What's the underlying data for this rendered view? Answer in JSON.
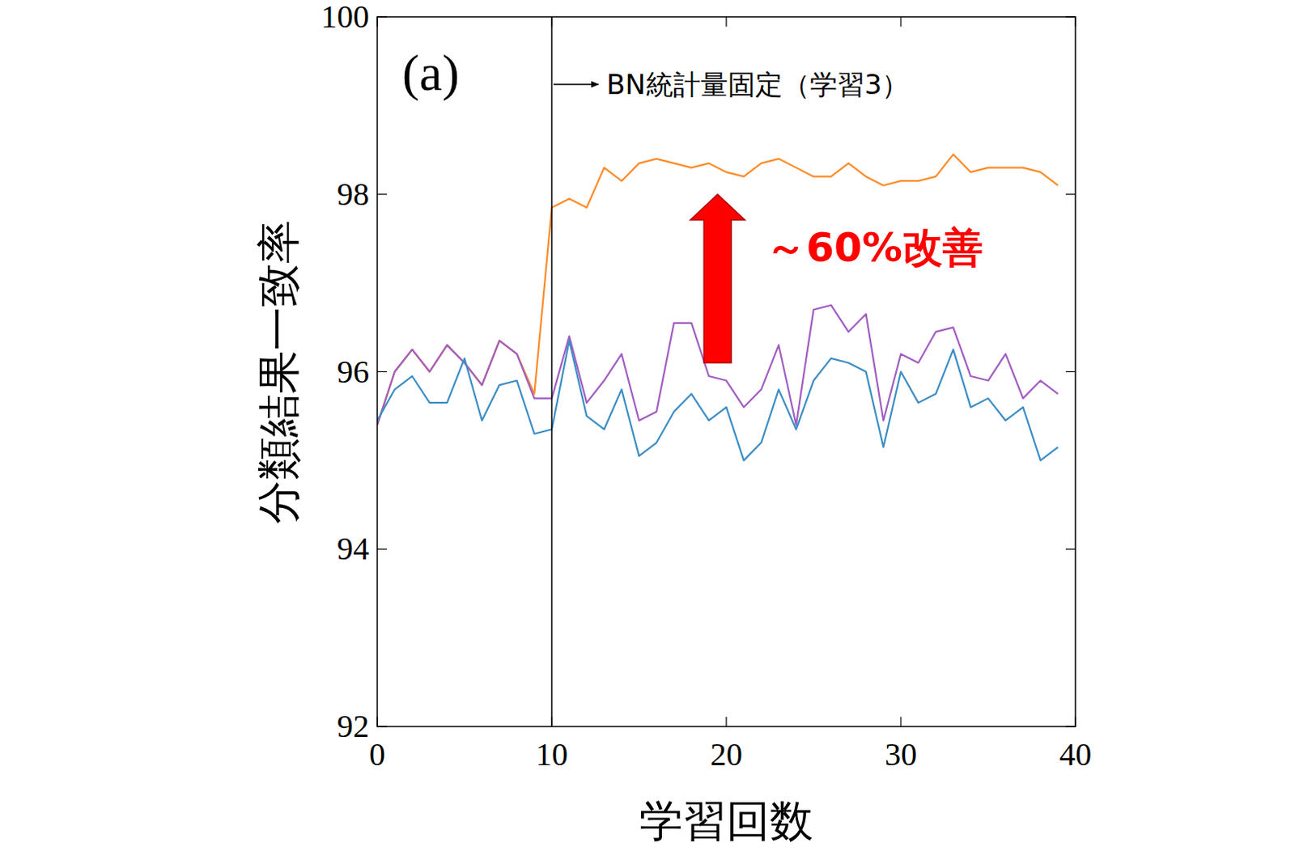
{
  "chart_data": {
    "type": "line",
    "panel_label": "(a)",
    "x_label": "学習回数",
    "y_label": "分類結果一致率",
    "x": [
      0,
      1,
      2,
      3,
      4,
      5,
      6,
      7,
      8,
      9,
      10,
      11,
      12,
      13,
      14,
      15,
      16,
      17,
      18,
      19,
      20,
      21,
      22,
      23,
      24,
      25,
      26,
      27,
      28,
      29,
      30,
      31,
      32,
      33,
      34,
      35,
      36,
      37,
      38,
      39
    ],
    "series": [
      {
        "color": "#ff8c2a",
        "values": [
          95.4,
          96.0,
          96.25,
          96.0,
          96.3,
          96.1,
          95.85,
          96.35,
          96.2,
          95.75,
          97.85,
          97.95,
          97.85,
          98.3,
          98.15,
          98.35,
          98.4,
          98.35,
          98.3,
          98.35,
          98.25,
          98.2,
          98.35,
          98.4,
          98.3,
          98.2,
          98.2,
          98.35,
          98.2,
          98.1,
          98.15,
          98.15,
          98.2,
          98.45,
          98.25,
          98.3,
          98.3,
          98.3,
          98.25,
          98.1
        ]
      },
      {
        "color": "#a25ec2",
        "values": [
          95.4,
          96.0,
          96.25,
          96.0,
          96.3,
          96.1,
          95.85,
          96.35,
          96.2,
          95.7,
          95.7,
          96.4,
          95.65,
          95.9,
          96.2,
          95.45,
          95.55,
          96.55,
          96.55,
          95.95,
          95.9,
          95.6,
          95.8,
          96.3,
          95.4,
          96.7,
          96.75,
          96.45,
          96.65,
          95.45,
          96.2,
          96.1,
          96.45,
          96.5,
          95.95,
          95.9,
          96.2,
          95.7,
          95.9,
          95.75
        ]
      },
      {
        "color": "#3d8ec6",
        "values": [
          95.45,
          95.8,
          95.95,
          95.65,
          95.65,
          96.15,
          95.45,
          95.85,
          95.9,
          95.3,
          95.35,
          96.35,
          95.5,
          95.35,
          95.8,
          95.05,
          95.2,
          95.55,
          95.75,
          95.45,
          95.6,
          95.0,
          95.2,
          95.8,
          95.35,
          95.9,
          96.15,
          96.1,
          96.0,
          95.15,
          96.0,
          95.65,
          95.75,
          96.25,
          95.6,
          95.7,
          95.45,
          95.6,
          95.0,
          95.15
        ]
      }
    ],
    "xlim": [
      0,
      40
    ],
    "ylim": [
      92,
      100
    ],
    "xticks": [
      0,
      10,
      20,
      30,
      40
    ],
    "yticks": [
      92,
      94,
      96,
      98,
      100
    ],
    "annotations": [
      {
        "text": "BN統計量固定（学習3）",
        "x": 10
      },
      {
        "text": "～60%改善",
        "x": 19.5,
        "y_from": 96.1,
        "y_to": 98.0,
        "color": "#ff0000"
      }
    ]
  }
}
